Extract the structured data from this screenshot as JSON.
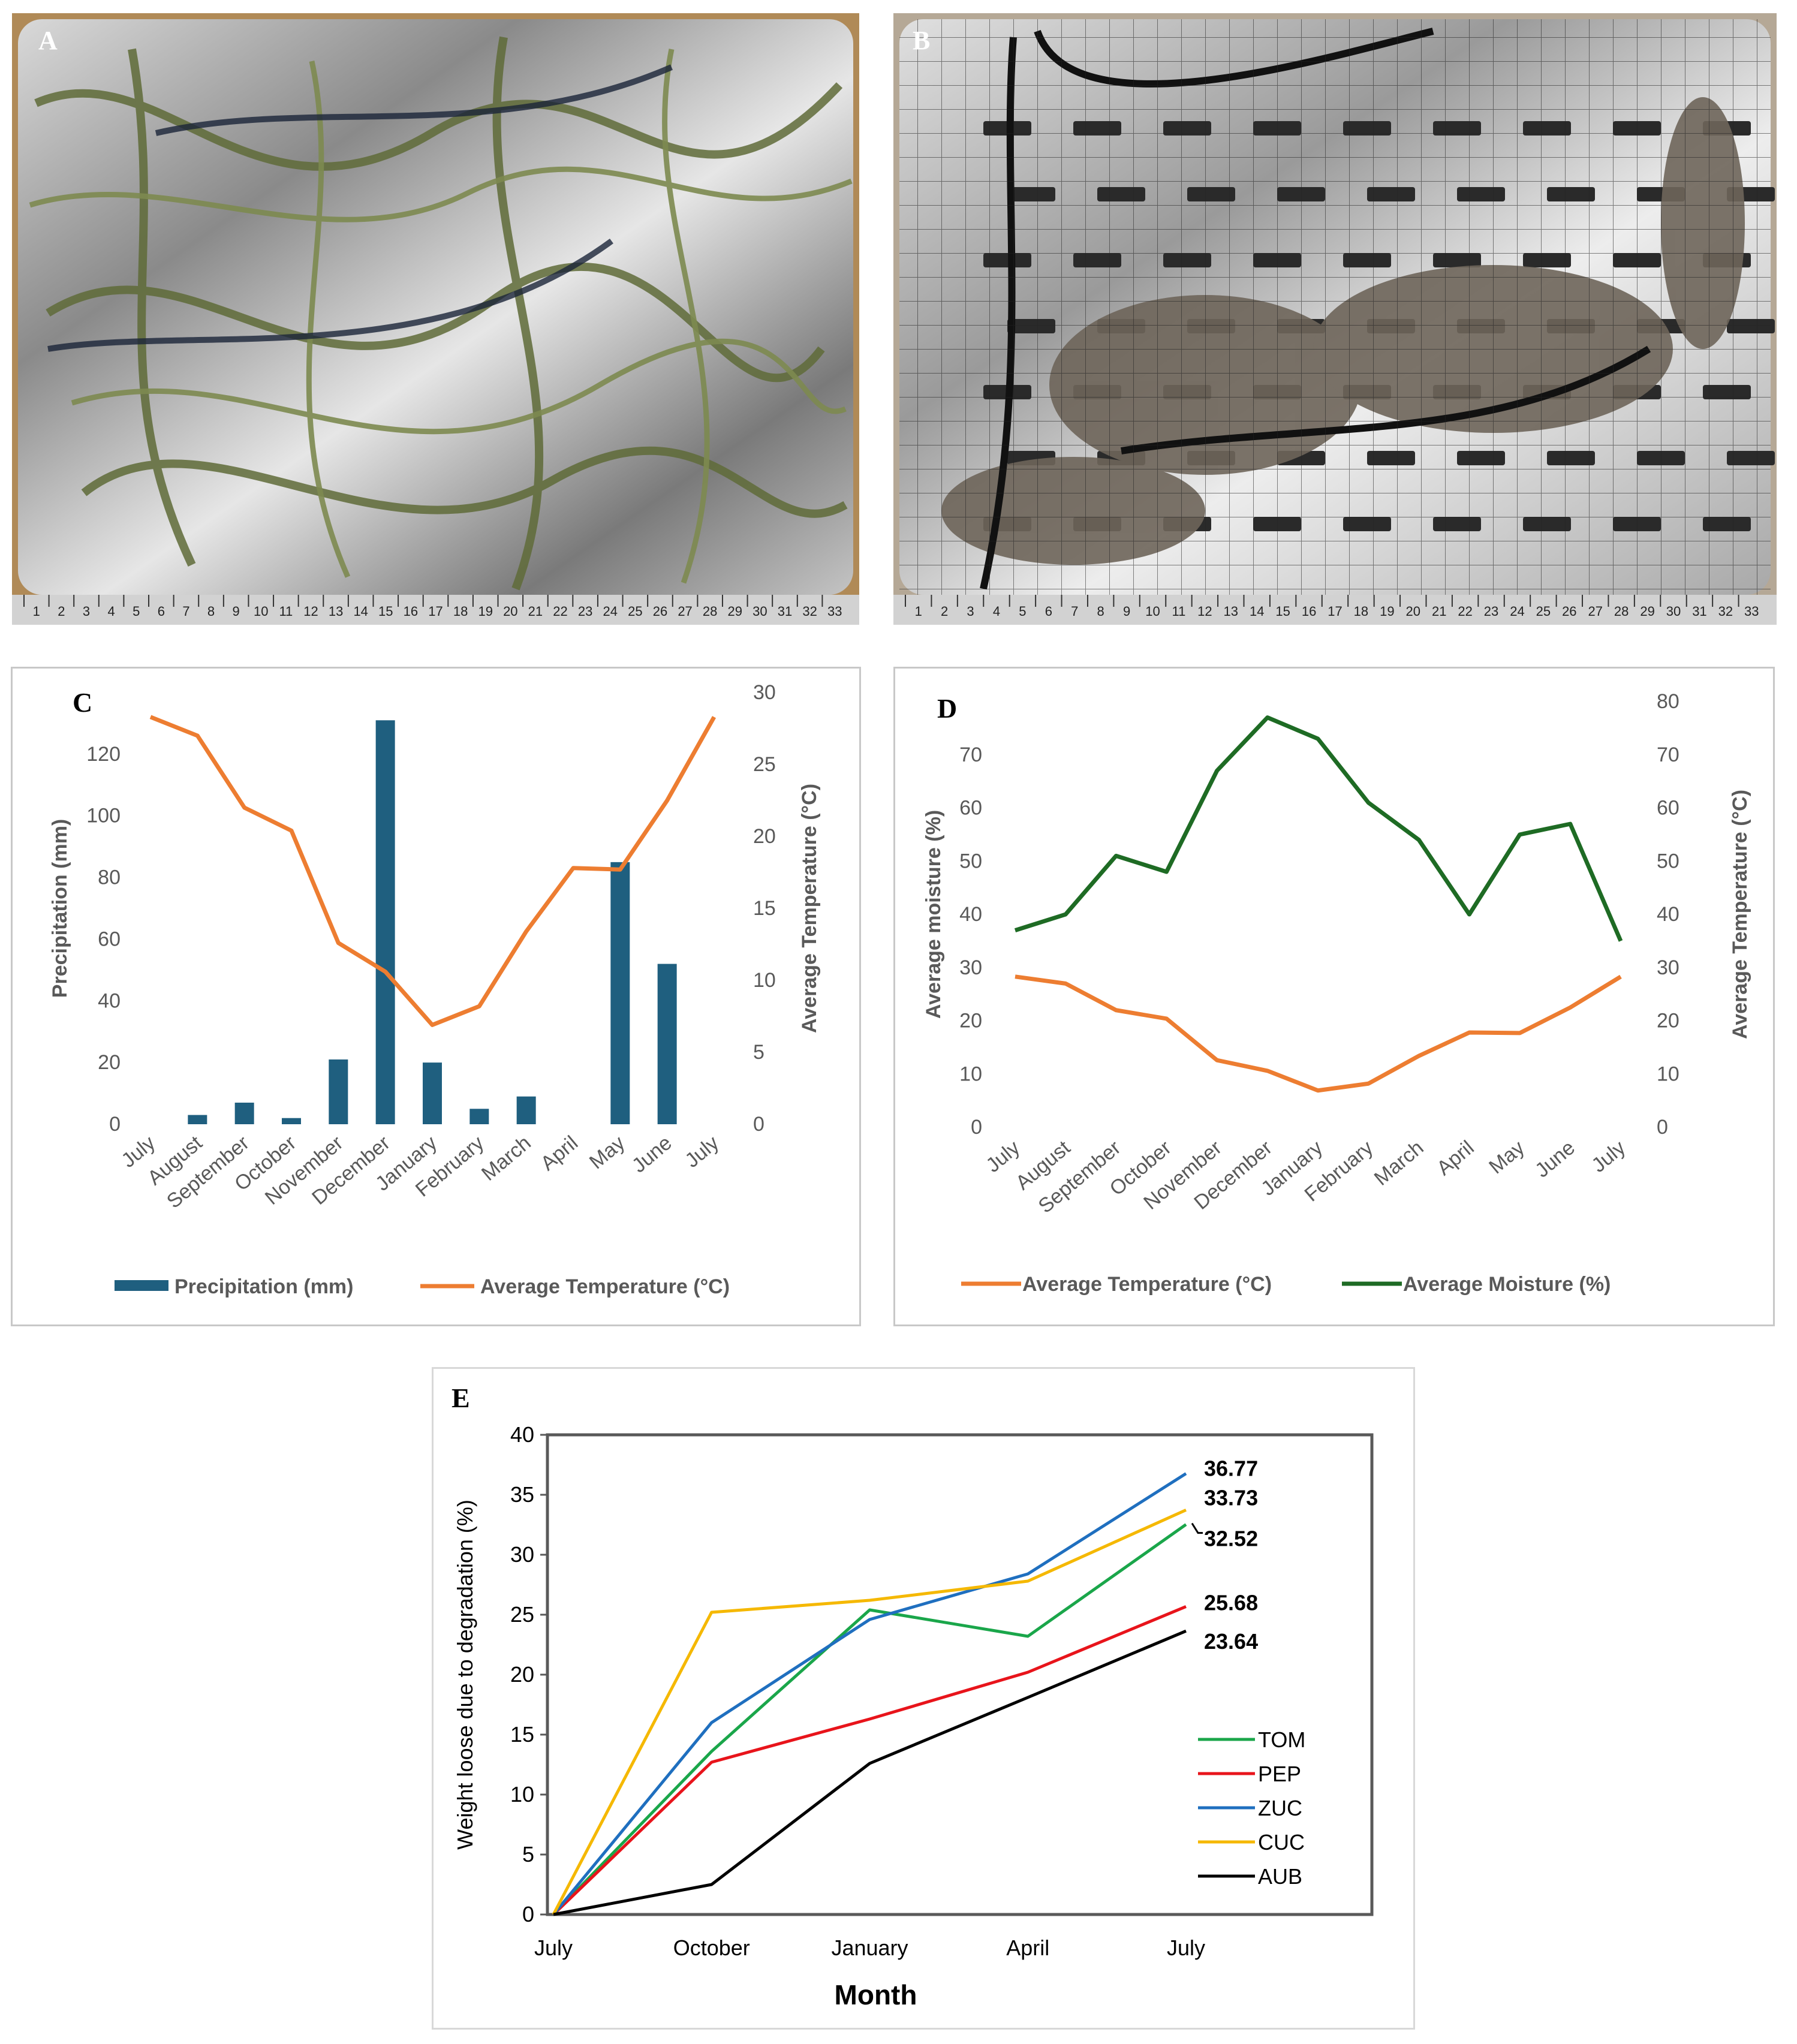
{
  "panels": {
    "a": {
      "label": "A",
      "ruler_ticks": [
        "1",
        "2",
        "3",
        "4",
        "5",
        "6",
        "7",
        "8",
        "9",
        "10",
        "11",
        "12",
        "13",
        "14",
        "15",
        "16",
        "17",
        "18",
        "19",
        "20",
        "21",
        "22",
        "23",
        "24",
        "25",
        "26",
        "27",
        "28",
        "29",
        "30",
        "31",
        "32",
        "33"
      ]
    },
    "b": {
      "label": "B",
      "ruler_ticks": [
        "1",
        "2",
        "3",
        "4",
        "5",
        "6",
        "7",
        "8",
        "9",
        "10",
        "11",
        "12",
        "13",
        "14",
        "15",
        "16",
        "17",
        "18",
        "19",
        "20",
        "21",
        "22",
        "23",
        "24",
        "25",
        "26",
        "27",
        "28",
        "29",
        "30",
        "31",
        "32",
        "33"
      ]
    },
    "c": {
      "label": "C"
    },
    "d": {
      "label": "D"
    },
    "e": {
      "label": "E"
    }
  },
  "chart_data": [
    {
      "id": "C",
      "type": "bar+line",
      "categories": [
        "July",
        "August",
        "September",
        "October",
        "November",
        "December",
        "January",
        "February",
        "March",
        "April",
        "May",
        "June",
        "July"
      ],
      "series": [
        {
          "name": "Precipitation (mm)",
          "type": "bar",
          "axis": "left",
          "color": "#1f5f7f",
          "values": [
            0,
            3,
            7,
            2,
            21,
            131,
            20,
            5,
            9,
            0,
            85,
            52,
            null
          ]
        },
        {
          "name": "Average Temperature (°C)",
          "type": "line",
          "axis": "right",
          "color": "#ed7d31",
          "values": [
            28.3,
            27,
            22,
            20.4,
            12.6,
            10.6,
            6.9,
            8.2,
            13.4,
            17.8,
            17.7,
            22.5,
            28.3
          ]
        }
      ],
      "ylabel": "Precipitation (mm)",
      "y2label": "Average Temperature (°C)",
      "ylim": [
        0,
        140
      ],
      "yticks": [
        0,
        20,
        40,
        60,
        80,
        100,
        120
      ],
      "y2lim": [
        0,
        30
      ],
      "y2ticks": [
        0,
        5,
        10,
        15,
        20,
        25,
        30
      ],
      "legend": "bottom",
      "grid": false
    },
    {
      "id": "D",
      "type": "line",
      "categories": [
        "July",
        "August",
        "September",
        "October",
        "November",
        "December",
        "January",
        "February",
        "March",
        "April",
        "May",
        "June",
        "July"
      ],
      "series": [
        {
          "name": "Average Temperature (°C)",
          "color": "#ed7d31",
          "values": [
            28.3,
            27,
            22,
            20.4,
            12.6,
            10.6,
            6.9,
            8.2,
            13.4,
            17.8,
            17.7,
            22.5,
            28.3
          ]
        },
        {
          "name": "Average Moisture (%)",
          "color": "#1e6b24",
          "values": [
            37,
            40,
            51,
            48,
            67,
            77,
            73,
            61,
            54,
            40,
            55,
            57,
            35
          ]
        }
      ],
      "ylabel": "Average moisture (%)",
      "y2label": "Average Temperature (°C)",
      "ylim": [
        0,
        80
      ],
      "yticks": [
        0,
        10,
        20,
        30,
        40,
        50,
        60,
        70
      ],
      "y2lim": [
        0,
        80
      ],
      "y2ticks": [
        0,
        10,
        20,
        30,
        40,
        50,
        60,
        70,
        80
      ],
      "legend": "bottom",
      "grid": false
    },
    {
      "id": "E",
      "type": "line",
      "categories": [
        "July",
        "October",
        "January",
        "April",
        "July"
      ],
      "series": [
        {
          "name": "TOM",
          "color": "#1aa64a",
          "values": [
            0,
            13.6,
            25.4,
            23.2,
            32.52
          ]
        },
        {
          "name": "PEP",
          "color": "#e8141b",
          "values": [
            0,
            12.7,
            16.3,
            20.2,
            25.68
          ]
        },
        {
          "name": "ZUC",
          "color": "#1f6fbf",
          "values": [
            0,
            16.0,
            24.6,
            28.4,
            36.77
          ]
        },
        {
          "name": "CUC",
          "color": "#f5b800",
          "values": [
            0,
            25.2,
            26.2,
            27.8,
            33.73
          ]
        },
        {
          "name": "AUB",
          "color": "#000000",
          "values": [
            0,
            2.5,
            12.6,
            18.1,
            23.64
          ]
        }
      ],
      "end_labels": [
        "36.77",
        "33.73",
        "32.52",
        "25.68",
        "23.64"
      ],
      "xlabel": "Month",
      "ylabel": "Weight loose due to degradation (%)",
      "ylim": [
        0,
        40
      ],
      "yticks": [
        0,
        5,
        10,
        15,
        20,
        25,
        30,
        35,
        40
      ],
      "legend": "bottom-right",
      "grid": false
    }
  ]
}
